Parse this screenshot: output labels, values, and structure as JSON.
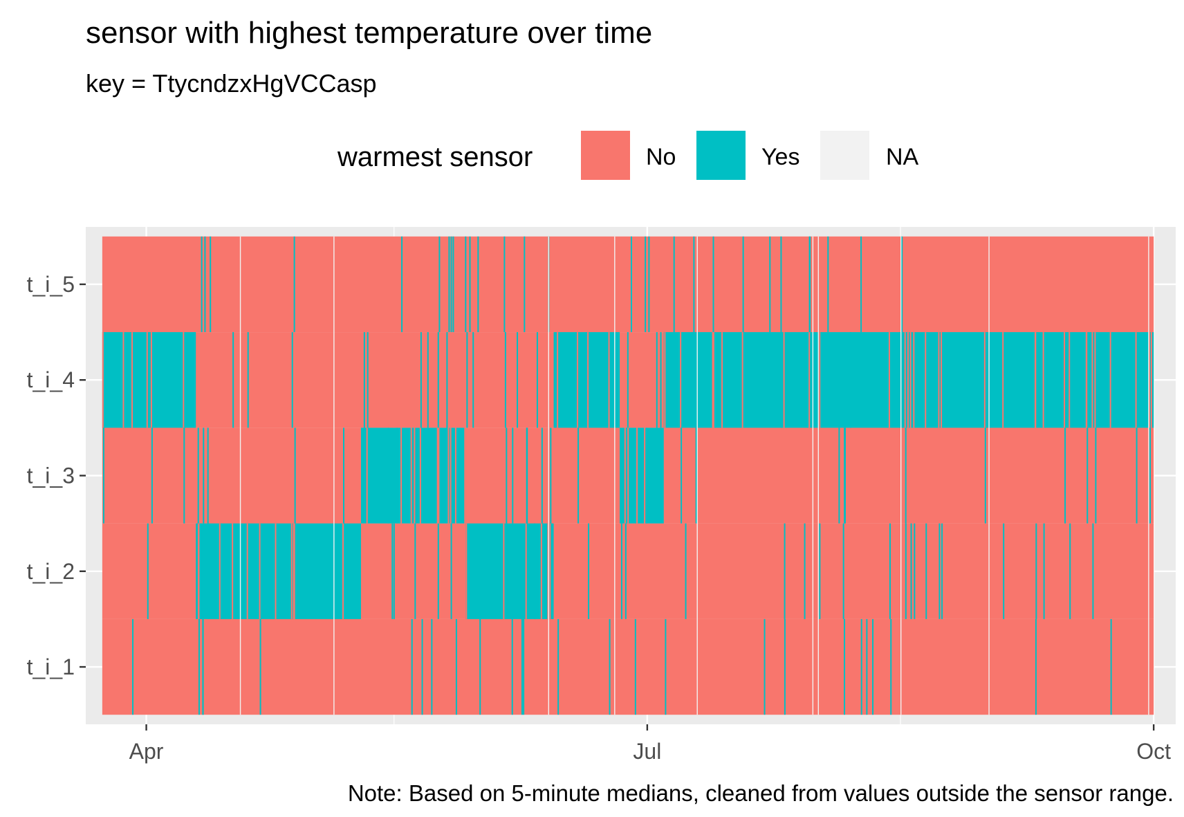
{
  "chart_data": {
    "type": "heatmap",
    "title": "sensor with highest temperature over time",
    "subtitle": "key = TtycndzxHgVCCasp",
    "caption": "Note: Based on 5-minute medians, cleaned from values outside the sensor range.",
    "xlabel": "",
    "ylabel": "",
    "x_ticks": [
      {
        "label": "Apr",
        "date": "2023-04-01"
      },
      {
        "label": "Jul",
        "date": "2023-07-01"
      },
      {
        "label": "Oct",
        "date": "2023-10-01"
      }
    ],
    "x_minor_ticks": [
      "2023-05-16",
      "2023-08-16"
    ],
    "x_range": [
      "2023-03-21",
      "2023-10-05"
    ],
    "data_range": [
      "2023-03-24",
      "2023-10-01"
    ],
    "y_categories": [
      "t_i_1",
      "t_i_2",
      "t_i_3",
      "t_i_4",
      "t_i_5"
    ],
    "legend": {
      "title": "warmest sensor",
      "position": "top",
      "entries": [
        {
          "label": "No",
          "color": "#F8766D"
        },
        {
          "label": "Yes",
          "color": "#00BFC4"
        },
        {
          "label": "NA",
          "color": "#F2F2F2"
        }
      ]
    },
    "colors": {
      "No": "#F8766D",
      "Yes": "#00BFC4",
      "NA": "#F2F2F2",
      "panel": "#EBEBEB",
      "grid": "#FFFFFF"
    },
    "warmest_sensor_periods": [
      {
        "sensor": "t_i_4",
        "start": "2023-03-24",
        "end": "2023-04-10"
      },
      {
        "sensor": "t_i_2",
        "start": "2023-04-10",
        "end": "2023-05-10"
      },
      {
        "sensor": "t_i_3",
        "start": "2023-05-10",
        "end": "2023-05-20"
      },
      {
        "sensor": "t_i_3",
        "start": "2023-05-20",
        "end": "2023-05-24"
      },
      {
        "sensor": "t_i_3",
        "start": "2023-05-24",
        "end": "2023-05-29"
      },
      {
        "sensor": "t_i_2",
        "start": "2023-05-29",
        "end": "2023-06-14"
      },
      {
        "sensor": "t_i_4",
        "start": "2023-06-14",
        "end": "2023-06-26"
      },
      {
        "sensor": "t_i_3",
        "start": "2023-06-26",
        "end": "2023-07-04"
      },
      {
        "sensor": "t_i_4",
        "start": "2023-07-04",
        "end": "2023-10-01"
      }
    ]
  }
}
